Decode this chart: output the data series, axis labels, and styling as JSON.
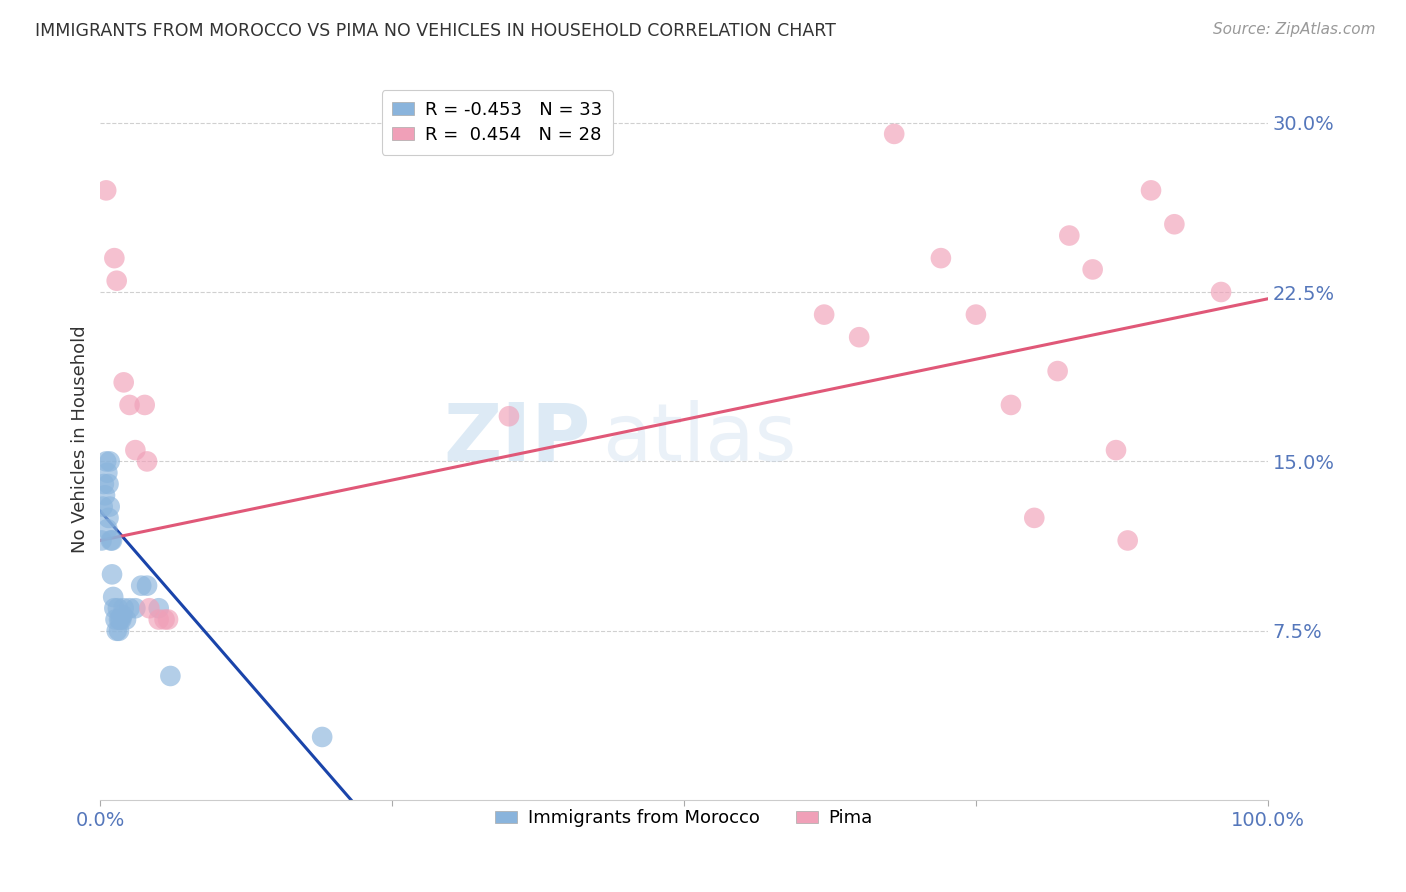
{
  "title": "IMMIGRANTS FROM MOROCCO VS PIMA NO VEHICLES IN HOUSEHOLD CORRELATION CHART",
  "source": "Source: ZipAtlas.com",
  "ylabel": "No Vehicles in Household",
  "xlim": [
    0.0,
    1.0
  ],
  "ylim": [
    0.0,
    0.32
  ],
  "yticks_right": [
    0.075,
    0.15,
    0.225,
    0.3
  ],
  "ytick_labels_right": [
    "7.5%",
    "15.0%",
    "22.5%",
    "30.0%"
  ],
  "grid_color": "#d0d0d0",
  "background_color": "#ffffff",
  "blue_color": "#8AB4DC",
  "pink_color": "#F0A0B8",
  "blue_line_color": "#1A44AA",
  "pink_line_color": "#E05878",
  "watermark_zip": "ZIP",
  "watermark_atlas": "atlas",
  "legend_r1": "R = -0.453   N = 33",
  "legend_r2": "R =  0.454   N = 28",
  "legend_label1": "Immigrants from Morocco",
  "legend_label2": "Pima",
  "blue_scatter_x": [
    0.001,
    0.002,
    0.003,
    0.004,
    0.005,
    0.006,
    0.006,
    0.007,
    0.007,
    0.008,
    0.008,
    0.009,
    0.01,
    0.01,
    0.011,
    0.012,
    0.013,
    0.014,
    0.015,
    0.016,
    0.016,
    0.017,
    0.018,
    0.019,
    0.02,
    0.022,
    0.025,
    0.03,
    0.035,
    0.04,
    0.05,
    0.06,
    0.19
  ],
  "blue_scatter_y": [
    0.115,
    0.13,
    0.14,
    0.135,
    0.15,
    0.12,
    0.145,
    0.125,
    0.14,
    0.13,
    0.15,
    0.115,
    0.1,
    0.115,
    0.09,
    0.085,
    0.08,
    0.075,
    0.085,
    0.08,
    0.075,
    0.08,
    0.08,
    0.082,
    0.085,
    0.08,
    0.085,
    0.085,
    0.095,
    0.095,
    0.085,
    0.055,
    0.028
  ],
  "pink_scatter_x": [
    0.005,
    0.012,
    0.014,
    0.02,
    0.025,
    0.03,
    0.038,
    0.04,
    0.042,
    0.05,
    0.055,
    0.058,
    0.35,
    0.62,
    0.65,
    0.68,
    0.72,
    0.75,
    0.78,
    0.8,
    0.82,
    0.83,
    0.85,
    0.87,
    0.88,
    0.9,
    0.92,
    0.96
  ],
  "pink_scatter_y": [
    0.27,
    0.24,
    0.23,
    0.185,
    0.175,
    0.155,
    0.175,
    0.15,
    0.085,
    0.08,
    0.08,
    0.08,
    0.17,
    0.215,
    0.205,
    0.295,
    0.24,
    0.215,
    0.175,
    0.125,
    0.19,
    0.25,
    0.235,
    0.155,
    0.115,
    0.27,
    0.255,
    0.225
  ],
  "blue_line_x": [
    0.0,
    0.215
  ],
  "blue_line_y": [
    0.128,
    0.0
  ],
  "pink_line_x": [
    0.0,
    1.0
  ],
  "pink_line_y": [
    0.115,
    0.222
  ]
}
